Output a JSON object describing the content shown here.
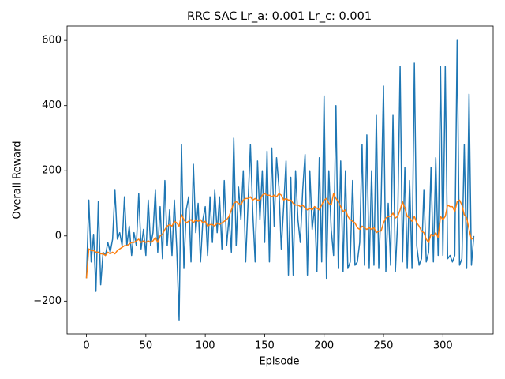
{
  "chart_data": {
    "type": "line",
    "title": "RRC SAC Lr_a: 0.001 Lr_c: 0.001",
    "xlabel": "Episode",
    "ylabel": "Overall Reward",
    "x": [
      0,
      2,
      4,
      6,
      8,
      10,
      12,
      14,
      16,
      18,
      20,
      22,
      24,
      26,
      28,
      30,
      32,
      34,
      36,
      38,
      40,
      42,
      44,
      46,
      48,
      50,
      52,
      54,
      56,
      58,
      60,
      62,
      64,
      66,
      68,
      70,
      72,
      74,
      76,
      78,
      80,
      82,
      84,
      86,
      88,
      90,
      92,
      94,
      96,
      98,
      100,
      102,
      104,
      106,
      108,
      110,
      112,
      114,
      116,
      118,
      120,
      122,
      124,
      126,
      128,
      130,
      132,
      134,
      136,
      138,
      140,
      142,
      144,
      146,
      148,
      150,
      152,
      154,
      156,
      158,
      160,
      162,
      164,
      166,
      168,
      170,
      172,
      174,
      176,
      178,
      180,
      182,
      184,
      186,
      188,
      190,
      192,
      194,
      196,
      198,
      200,
      202,
      204,
      206,
      208,
      210,
      212,
      214,
      216,
      218,
      220,
      222,
      224,
      226,
      228,
      230,
      232,
      234,
      236,
      238,
      240,
      242,
      244,
      246,
      248,
      250,
      252,
      254,
      256,
      258,
      260,
      262,
      264,
      266,
      268,
      270,
      272,
      274,
      276,
      278,
      280,
      282,
      284,
      286,
      288,
      290,
      292,
      294,
      296,
      298,
      300,
      302,
      304,
      306,
      308,
      310,
      312,
      314,
      316,
      318,
      320,
      322,
      324,
      326
    ],
    "series": [
      {
        "color": "#1f77b4",
        "values": [
          -130,
          110,
          -80,
          5,
          -170,
          105,
          -150,
          -50,
          -60,
          -20,
          -50,
          -10,
          140,
          -10,
          10,
          -30,
          120,
          -30,
          30,
          -60,
          10,
          -30,
          130,
          -40,
          20,
          -60,
          110,
          -30,
          10,
          140,
          -50,
          90,
          -70,
          170,
          -30,
          80,
          -60,
          110,
          -40,
          -258,
          280,
          -100,
          80,
          120,
          -80,
          220,
          10,
          100,
          -80,
          50,
          90,
          -60,
          120,
          -20,
          140,
          10,
          120,
          -40,
          170,
          -30,
          60,
          -50,
          300,
          -30,
          150,
          50,
          200,
          -80,
          100,
          280,
          70,
          -80,
          230,
          50,
          200,
          -20,
          260,
          -80,
          270,
          30,
          240,
          150,
          -40,
          90,
          230,
          -120,
          180,
          -120,
          200,
          50,
          -20,
          140,
          250,
          -120,
          200,
          20,
          90,
          -110,
          240,
          -80,
          430,
          -130,
          200,
          20,
          -60,
          400,
          -100,
          230,
          -110,
          200,
          -100,
          -80,
          170,
          -90,
          -80,
          -20,
          280,
          -90,
          310,
          -100,
          200,
          -90,
          370,
          -100,
          100,
          460,
          -110,
          100,
          -90,
          370,
          -110,
          50,
          520,
          -80,
          210,
          -100,
          170,
          -100,
          530,
          -30,
          -90,
          -70,
          140,
          -80,
          -50,
          210,
          -80,
          240,
          -60,
          520,
          -60,
          520,
          -70,
          -60,
          -80,
          -60,
          600,
          -90,
          -70,
          280,
          -100,
          435,
          -90,
          0
        ]
      },
      {
        "color": "#ff7f0e",
        "values": [
          -130,
          -40,
          -45,
          -45,
          -50,
          -50,
          -55,
          -55,
          -60,
          -50,
          -55,
          -50,
          -55,
          -45,
          -40,
          -35,
          -30,
          -30,
          -25,
          -20,
          -20,
          -15,
          -10,
          -20,
          -15,
          -20,
          -15,
          -20,
          -15,
          -5,
          -20,
          0,
          5,
          20,
          30,
          35,
          30,
          45,
          40,
          30,
          65,
          50,
          40,
          45,
          50,
          40,
          50,
          45,
          50,
          40,
          45,
          30,
          35,
          35,
          30,
          40,
          35,
          40,
          45,
          50,
          60,
          80,
          100,
          105,
          100,
          95,
          110,
          115,
          115,
          120,
          110,
          115,
          110,
          110,
          125,
          130,
          125,
          125,
          120,
          125,
          120,
          130,
          125,
          110,
          115,
          110,
          110,
          100,
          95,
          95,
          90,
          95,
          85,
          80,
          85,
          80,
          90,
          85,
          80,
          95,
          110,
          115,
          100,
          95,
          130,
          115,
          105,
          90,
          75,
          80,
          60,
          50,
          45,
          40,
          25,
          20,
          30,
          25,
          20,
          25,
          20,
          25,
          10,
          15,
          15,
          40,
          55,
          60,
          60,
          70,
          55,
          60,
          80,
          105,
          85,
          60,
          55,
          45,
          60,
          40,
          30,
          15,
          10,
          -10,
          -20,
          5,
          0,
          10,
          -5,
          60,
          50,
          60,
          95,
          90,
          90,
          75,
          105,
          110,
          95,
          65,
          55,
          20,
          -10,
          -5
        ]
      }
    ],
    "xlim": [
      -16.3,
      342.3
    ],
    "xticks": [
      0,
      50,
      100,
      150,
      200,
      250,
      300
    ],
    "ylim": [
      -301,
      644
    ],
    "yticks": [
      {
        "value": -200,
        "label": "−200"
      },
      0,
      200,
      400,
      600
    ]
  }
}
